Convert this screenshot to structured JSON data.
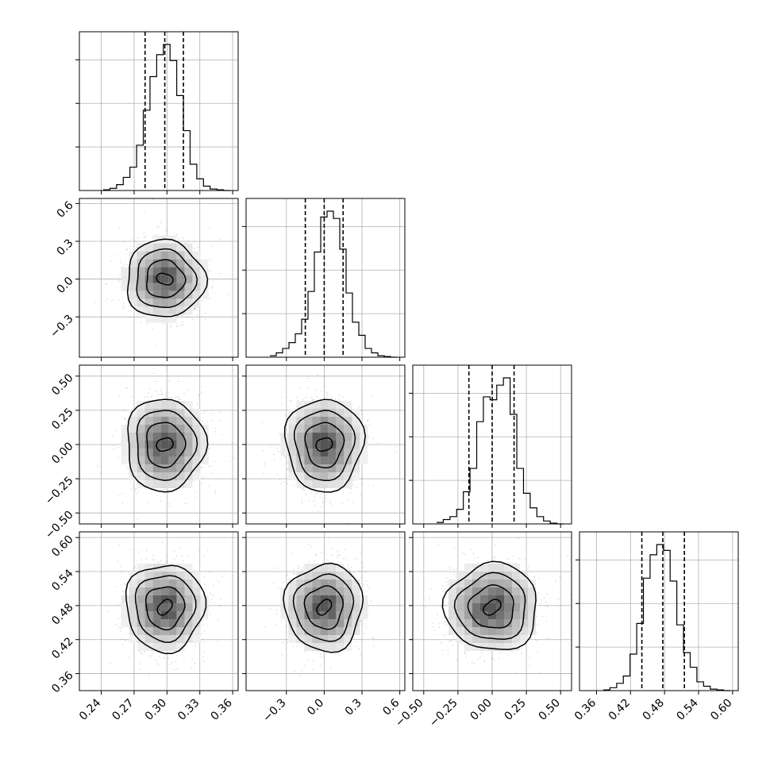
{
  "chart_data": {
    "type": "corner",
    "grid": true,
    "parameters": [
      {
        "id": "p0",
        "range": [
          0.22,
          0.365
        ],
        "ticks": [
          0.24,
          0.27,
          0.3,
          0.33,
          0.36
        ],
        "tick_labels": [
          "0.24",
          "0.27",
          "0.30",
          "0.33",
          "0.36"
        ],
        "quantiles": [
          0.28,
          0.298,
          0.315
        ],
        "histogram": [
          0.5,
          1.5,
          4,
          9,
          16,
          31,
          55,
          78,
          93,
          100,
          89,
          65,
          41,
          18,
          8,
          3,
          1,
          0.5,
          0
        ]
      },
      {
        "id": "p1",
        "range": [
          -0.62,
          0.64
        ],
        "ticks": [
          -0.3,
          0.0,
          0.3,
          0.6
        ],
        "tick_labels": [
          "−0.3",
          "0.0",
          "0.3",
          "0.6"
        ],
        "quantiles": [
          -0.15,
          0.0,
          0.15
        ],
        "histogram": [
          1,
          3,
          6,
          10,
          16,
          26,
          45,
          72,
          96,
          100,
          95,
          74,
          44,
          24,
          15,
          6,
          3,
          1,
          0.5,
          0
        ]
      },
      {
        "id": "p2",
        "range": [
          -0.58,
          0.58
        ],
        "ticks": [
          -0.5,
          -0.25,
          0.0,
          0.25,
          0.5
        ],
        "tick_labels": [
          "−0.50",
          "−0.25",
          "0.00",
          "0.25",
          "0.50"
        ],
        "quantiles": [
          -0.17,
          0.0,
          0.16
        ],
        "histogram": [
          1,
          3,
          5,
          10,
          22,
          38,
          70,
          87,
          85,
          95,
          100,
          75,
          38,
          21,
          11,
          5,
          2,
          0.5,
          0
        ]
      },
      {
        "id": "p3",
        "range": [
          0.33,
          0.61
        ],
        "ticks": [
          0.36,
          0.42,
          0.48,
          0.54,
          0.6
        ],
        "tick_labels": [
          "0.36",
          "0.42",
          "0.48",
          "0.54",
          "0.60"
        ],
        "quantiles": [
          0.44,
          0.477,
          0.515
        ],
        "histogram": [
          0.5,
          2,
          5,
          10,
          25,
          46,
          77,
          93,
          100,
          96,
          75,
          45,
          26,
          16,
          6,
          3,
          1,
          0.5,
          0
        ]
      }
    ],
    "y_tick_labels_histogram": ""
  }
}
